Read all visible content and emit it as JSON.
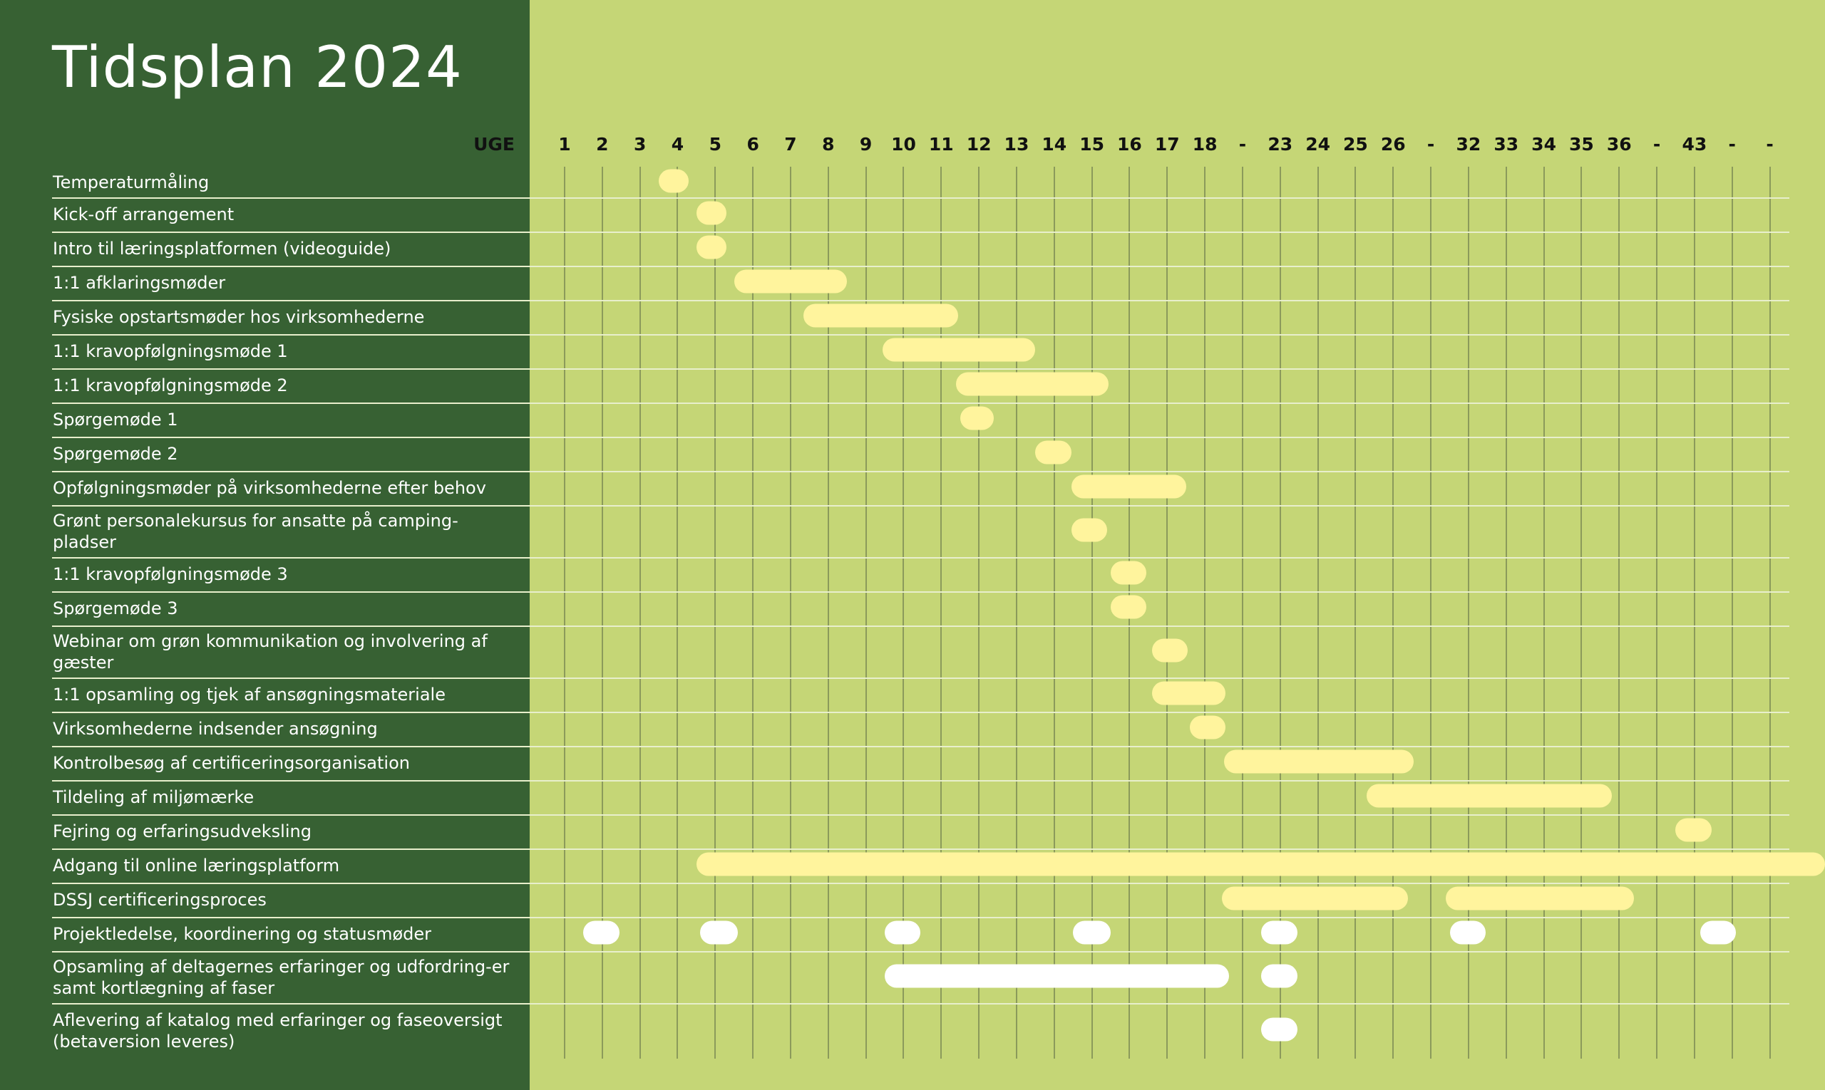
{
  "title": "Tidsplan 2024",
  "week_header": "UGE",
  "weeks": [
    "1",
    "2",
    "3",
    "4",
    "5",
    "6",
    "7",
    "8",
    "9",
    "10",
    "11",
    "12",
    "13",
    "14",
    "15",
    "16",
    "17",
    "18",
    "-",
    "23",
    "24",
    "25",
    "26",
    "-",
    "32",
    "33",
    "34",
    "35",
    "36",
    "-",
    "43",
    "-",
    "-"
  ],
  "colors": {
    "left_panel": "#376133",
    "background": "#c5d676",
    "bar_primary": "#fff49d",
    "bar_project": "#ffffff"
  },
  "tasks": [
    {
      "label": "Temperaturmåling",
      "bars": [
        {
          "start": 3.5,
          "end": 4.3,
          "color": "yellow"
        }
      ]
    },
    {
      "label": "Kick-off arrangement",
      "bars": [
        {
          "start": 4.5,
          "end": 5.3,
          "color": "yellow"
        }
      ]
    },
    {
      "label": "Intro til læringsplatformen (videoguide)",
      "bars": [
        {
          "start": 4.5,
          "end": 5.3,
          "color": "yellow"
        }
      ]
    },
    {
      "label": "1:1 afklaringsmøder",
      "bars": [
        {
          "start": 5.5,
          "end": 8.5,
          "color": "yellow"
        }
      ]
    },
    {
      "label": "Fysiske opstartsmøder hos virksomhederne",
      "bars": [
        {
          "start": 7.35,
          "end": 11.45,
          "color": "yellow"
        }
      ]
    },
    {
      "label": "1:1 kravopfølgningsmøde 1",
      "bars": [
        {
          "start": 9.45,
          "end": 13.5,
          "color": "yellow"
        }
      ]
    },
    {
      "label": "1:1 kravopfølgningsmøde 2",
      "bars": [
        {
          "start": 11.4,
          "end": 15.45,
          "color": "yellow"
        }
      ]
    },
    {
      "label": "Spørgemøde 1",
      "bars": [
        {
          "start": 11.5,
          "end": 12.4,
          "color": "yellow"
        }
      ]
    },
    {
      "label": "Spørgemøde 2",
      "bars": [
        {
          "start": 13.5,
          "end": 14.45,
          "color": "yellow"
        }
      ]
    },
    {
      "label": "Opfølgningsmøder på virksomhederne efter behov",
      "bars": [
        {
          "start": 14.45,
          "end": 17.5,
          "color": "yellow"
        }
      ]
    },
    {
      "label": "Grønt personalekursus for ansatte på camping-pladser",
      "bars": [
        {
          "start": 14.45,
          "end": 15.4,
          "color": "yellow"
        }
      ]
    },
    {
      "label": "1:1 kravopfølgningsmøde 3",
      "bars": [
        {
          "start": 15.5,
          "end": 16.45,
          "color": "yellow"
        }
      ]
    },
    {
      "label": "Spørgemøde 3",
      "bars": [
        {
          "start": 15.5,
          "end": 16.45,
          "color": "yellow"
        }
      ]
    },
    {
      "label": "Webinar om grøn kommunikation og involvering af gæster",
      "bars": [
        {
          "start": 16.6,
          "end": 17.55,
          "color": "yellow"
        }
      ]
    },
    {
      "label": "1:1 opsamling og tjek af ansøgningsmateriale",
      "bars": [
        {
          "start": 16.6,
          "end": 18.55,
          "color": "yellow"
        }
      ]
    },
    {
      "label": "Virksomhederne indsender ansøgning",
      "bars": [
        {
          "start": 17.6,
          "end": 18.55,
          "color": "yellow"
        }
      ]
    },
    {
      "label": "Kontrolbesøg af certificeringsorganisation",
      "bars": [
        {
          "start": 18.5,
          "end": 23.55,
          "color": "yellow"
        }
      ]
    },
    {
      "label": "Tildeling af miljømærke",
      "bars": [
        {
          "start": 22.3,
          "end": 28.8,
          "color": "yellow"
        }
      ]
    },
    {
      "label": "Fejring og erfaringsudveksling",
      "bars": [
        {
          "start": 30.5,
          "end": 31.45,
          "color": "yellow"
        }
      ]
    },
    {
      "label": "Adgang til online læringsplatform",
      "bars": [
        {
          "start": 4.5,
          "end": 34.5,
          "color": "yellow"
        }
      ]
    },
    {
      "label": "DSSJ certificeringsproces",
      "bars": [
        {
          "start": 18.45,
          "end": 23.4,
          "color": "yellow"
        },
        {
          "start": 24.4,
          "end": 29.4,
          "color": "yellow"
        }
      ]
    },
    {
      "label": "Projektledelse, koordinering og statusmøder",
      "bars": [
        {
          "start": 1.5,
          "end": 2.45,
          "color": "white"
        },
        {
          "start": 4.6,
          "end": 5.6,
          "color": "white"
        },
        {
          "start": 9.5,
          "end": 10.45,
          "color": "white"
        },
        {
          "start": 14.5,
          "end": 15.5,
          "color": "white"
        },
        {
          "start": 19.5,
          "end": 20.45,
          "color": "white"
        },
        {
          "start": 24.5,
          "end": 25.45,
          "color": "white"
        },
        {
          "start": 31.15,
          "end": 32.1,
          "color": "white"
        }
      ]
    },
    {
      "label": "Opsamling af deltagernes erfaringer og udfordring-er samt kortlægning af faser",
      "bars": [
        {
          "start": 9.5,
          "end": 18.65,
          "color": "white"
        },
        {
          "start": 19.5,
          "end": 20.45,
          "color": "white"
        }
      ]
    },
    {
      "label": "Aflevering af katalog med erfaringer og faseoversigt (betaversion leveres)",
      "bars": [
        {
          "start": 19.5,
          "end": 20.45,
          "color": "white"
        }
      ]
    }
  ]
}
